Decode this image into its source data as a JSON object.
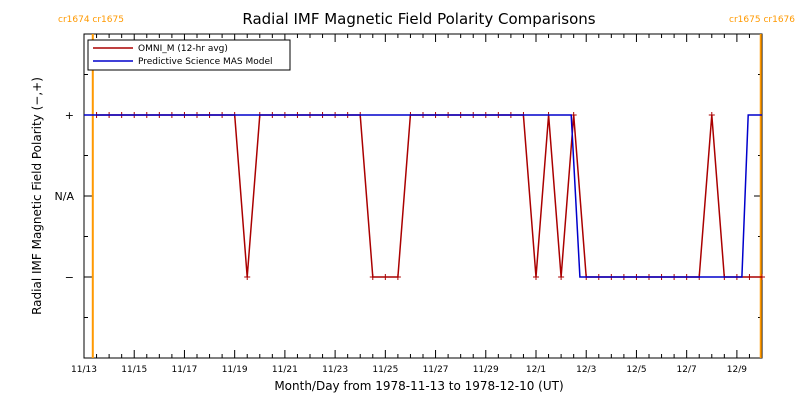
{
  "chart_data": {
    "type": "line",
    "title": "Radial IMF Magnetic Field Polarity Comparisons",
    "xlabel": "Month/Day from 1978-11-13 to 1978-12-10 (UT)",
    "ylabel": "Radial IMF Magnetic Field Polarity (−,+)",
    "x_unit": "day of November 1978 (decimal; 31.0 = Dec 1)",
    "xlim": [
      13.0,
      40.0
    ],
    "ylim": [
      -1.0,
      3.0
    ],
    "x_ticks": [
      {
        "x": 13,
        "label": "11/13"
      },
      {
        "x": 15,
        "label": "11/15"
      },
      {
        "x": 17,
        "label": "11/17"
      },
      {
        "x": 19,
        "label": "11/19"
      },
      {
        "x": 21,
        "label": "11/21"
      },
      {
        "x": 23,
        "label": "11/23"
      },
      {
        "x": 25,
        "label": "11/25"
      },
      {
        "x": 27,
        "label": "11/27"
      },
      {
        "x": 29,
        "label": "11/29"
      },
      {
        "x": 31,
        "label": "12/1"
      },
      {
        "x": 33,
        "label": "12/3"
      },
      {
        "x": 35,
        "label": "12/5"
      },
      {
        "x": 37,
        "label": "12/7"
      },
      {
        "x": 39,
        "label": "12/9"
      }
    ],
    "y_ticks": [
      {
        "y": 0,
        "label": "−"
      },
      {
        "y": 1,
        "label": "N/A"
      },
      {
        "y": 2,
        "label": "+"
      }
    ],
    "carrington_markers": [
      {
        "x": 13.35,
        "label": "cr1674 cr1675",
        "side": "left"
      },
      {
        "x": 39.95,
        "label": "cr1675 cr1676",
        "side": "right"
      }
    ],
    "legend": {
      "placement": "top-left"
    },
    "series": [
      {
        "name": "OMNI_M (12-hr avg)",
        "color": "#aa0000",
        "marker": "+",
        "points": [
          [
            13.5,
            2
          ],
          [
            14.0,
            2
          ],
          [
            14.5,
            2
          ],
          [
            15.0,
            2
          ],
          [
            15.5,
            2
          ],
          [
            16.0,
            2
          ],
          [
            16.5,
            2
          ],
          [
            17.0,
            2
          ],
          [
            17.5,
            2
          ],
          [
            18.0,
            2
          ],
          [
            18.5,
            2
          ],
          [
            19.0,
            2
          ],
          [
            19.5,
            0
          ],
          [
            20.0,
            2
          ],
          [
            20.5,
            2
          ],
          [
            21.0,
            2
          ],
          [
            21.5,
            2
          ],
          [
            22.0,
            2
          ],
          [
            22.5,
            2
          ],
          [
            23.0,
            2
          ],
          [
            23.5,
            2
          ],
          [
            24.0,
            2
          ],
          [
            24.5,
            0
          ],
          [
            25.0,
            0
          ],
          [
            25.5,
            0
          ],
          [
            26.0,
            2
          ],
          [
            26.5,
            2
          ],
          [
            27.0,
            2
          ],
          [
            27.5,
            2
          ],
          [
            28.0,
            2
          ],
          [
            28.5,
            2
          ],
          [
            29.0,
            2
          ],
          [
            29.5,
            2
          ],
          [
            30.0,
            2
          ],
          [
            30.5,
            2
          ],
          [
            31.0,
            0
          ],
          [
            31.5,
            2
          ],
          [
            32.0,
            0
          ],
          [
            32.5,
            2
          ],
          [
            33.0,
            0
          ],
          [
            33.5,
            0
          ],
          [
            34.0,
            0
          ],
          [
            34.5,
            0
          ],
          [
            35.0,
            0
          ],
          [
            35.5,
            0
          ],
          [
            36.0,
            0
          ],
          [
            36.5,
            0
          ],
          [
            37.0,
            0
          ],
          [
            37.5,
            0
          ],
          [
            38.0,
            2
          ],
          [
            38.5,
            0
          ],
          [
            39.0,
            0
          ],
          [
            39.5,
            0
          ],
          [
            40.0,
            0
          ]
        ]
      },
      {
        "name": "Predictive Science MAS Model",
        "color": "#0000cc",
        "marker": "none",
        "points": [
          [
            13.0,
            2
          ],
          [
            32.4,
            2
          ],
          [
            32.75,
            0
          ],
          [
            39.2,
            0
          ],
          [
            39.45,
            2
          ],
          [
            40.0,
            2
          ]
        ]
      }
    ]
  }
}
